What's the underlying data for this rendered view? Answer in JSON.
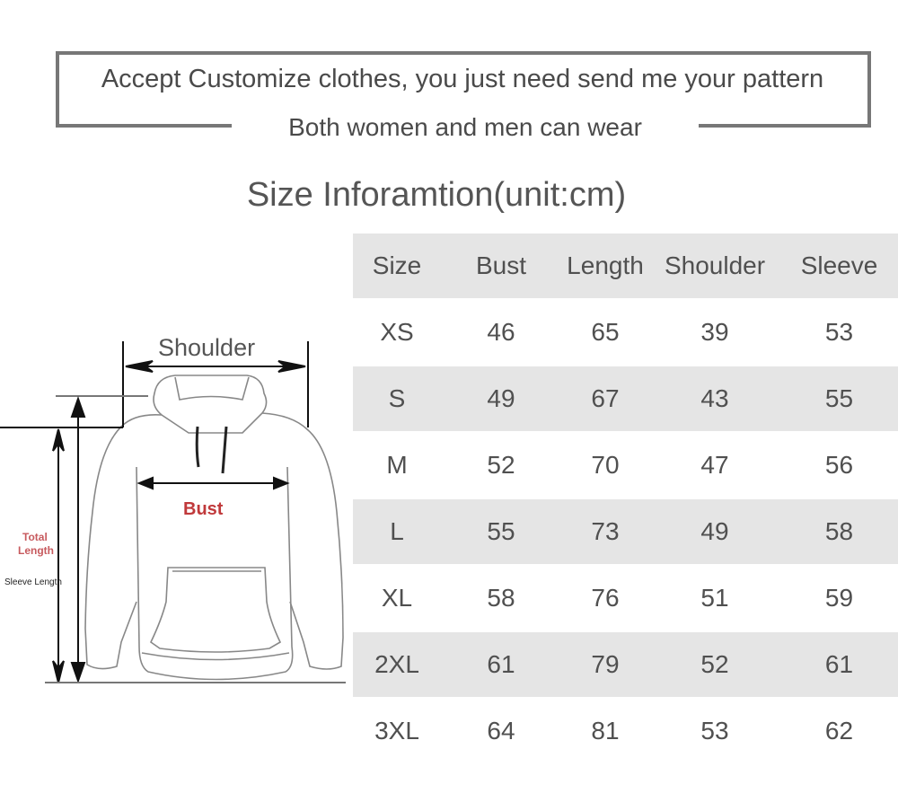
{
  "banner": {
    "line1": "Accept Customize clothes, you just need send me your pattern",
    "line2": "Both women and men can wear"
  },
  "title": "Size Inforamtion(unit:cm)",
  "diagram": {
    "shoulder": "Shoulder",
    "bust": "Bust",
    "total_length_1": "Total",
    "total_length_2": "Length",
    "sleeve_length": "Sleeve Length",
    "accent_color": "#c0393b"
  },
  "table": {
    "headers": [
      "Size",
      "Bust",
      "Length",
      "Shoulder",
      "Sleeve"
    ],
    "rows": [
      [
        "XS",
        "46",
        "65",
        "39",
        "53"
      ],
      [
        "S",
        "49",
        "67",
        "43",
        "55"
      ],
      [
        "M",
        "52",
        "70",
        "47",
        "56"
      ],
      [
        "L",
        "55",
        "73",
        "49",
        "58"
      ],
      [
        "XL",
        "58",
        "76",
        "51",
        "59"
      ],
      [
        "2XL",
        "61",
        "79",
        "52",
        "61"
      ],
      [
        "3XL",
        "64",
        "81",
        "53",
        "62"
      ]
    ]
  }
}
